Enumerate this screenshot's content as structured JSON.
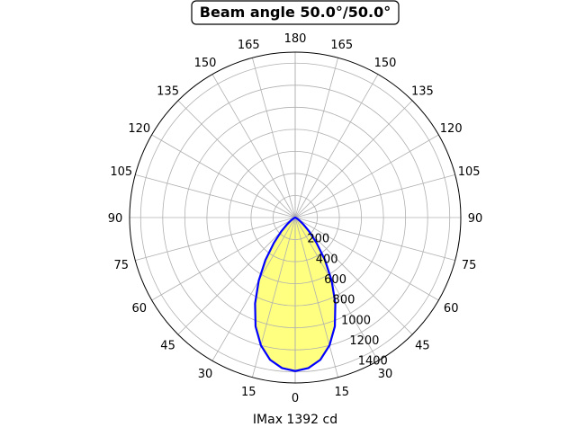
{
  "chart_data": {
    "type": "polar",
    "title": "Beam angle 50.0°/50.0°",
    "xlabel": "IMax 1392 cd",
    "theta_zero_location": "S",
    "theta_direction": "mirrored",
    "angle_ticks": [
      0,
      15,
      30,
      45,
      60,
      75,
      90,
      105,
      120,
      135,
      150,
      165,
      180
    ],
    "radial_ticks": [
      200,
      400,
      600,
      800,
      1000,
      1200,
      1400
    ],
    "rlim": [
      0,
      1500
    ],
    "grid": true,
    "colors": {
      "curve": "#0000ff",
      "fill": "#ffff80",
      "grid": "#b0b0b0"
    },
    "series": [
      {
        "angles": [
          0,
          5,
          10,
          15,
          20,
          25,
          30,
          35,
          40,
          45,
          50,
          55,
          60,
          65,
          70,
          75,
          80,
          85,
          90
        ],
        "values": [
          1392,
          1370,
          1310,
          1200,
          1050,
          860,
          660,
          470,
          300,
          180,
          100,
          50,
          25,
          10,
          4,
          0,
          0,
          0,
          0
        ]
      }
    ]
  }
}
